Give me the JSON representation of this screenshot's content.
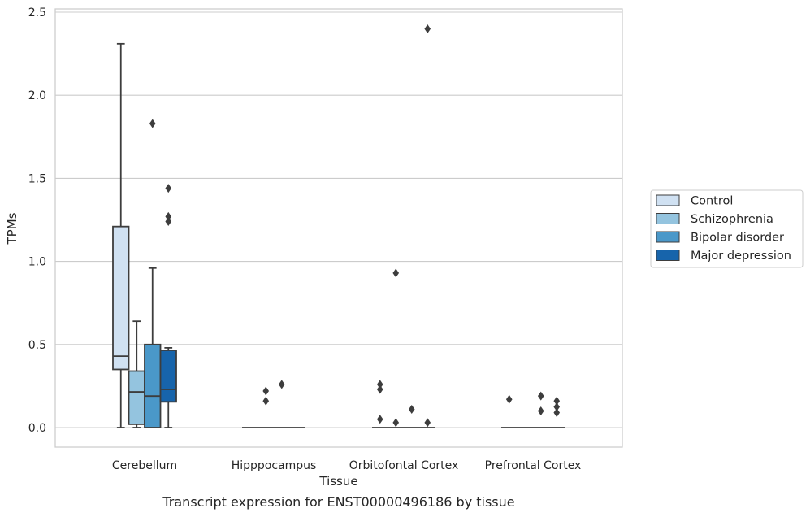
{
  "chart_data": {
    "type": "box",
    "title": "Transcript expression for ENST00000496186 by tissue",
    "xlabel": "Tissue",
    "ylabel": "TPMs",
    "ylim": [
      -0.115,
      2.535
    ],
    "yticks": [
      "0.0",
      "0.5",
      "1.0",
      "1.5",
      "2.0",
      "2.5"
    ],
    "ytick_values": [
      0,
      0.5,
      1.0,
      1.5,
      2.0,
      2.5
    ],
    "grid": "horizontal",
    "legend_position": "right",
    "categories": [
      "Cerebellum",
      "Hipppocampus",
      "Orbitofontal Cortex",
      "Prefrontal Cortex"
    ],
    "series": [
      {
        "name": "Control",
        "color": "#d0e1f2",
        "boxes": [
          {
            "q1": 0.35,
            "median": 0.43,
            "q3": 1.21,
            "whisker_low": 0.0,
            "whisker_high": 2.31,
            "outliers": []
          },
          {
            "q1": 0.0,
            "median": 0.0,
            "q3": 0.0,
            "whisker_low": 0.0,
            "whisker_high": 0.0,
            "outliers": []
          },
          {
            "q1": 0.0,
            "median": 0.0,
            "q3": 0.0,
            "whisker_low": 0.0,
            "whisker_high": 0.0,
            "outliers": [
              0.05,
              0.23,
              0.26
            ]
          },
          {
            "q1": 0.0,
            "median": 0.0,
            "q3": 0.0,
            "whisker_low": 0.0,
            "whisker_high": 0.0,
            "outliers": [
              0.17
            ]
          }
        ]
      },
      {
        "name": "Schizophrenia",
        "color": "#94c4df",
        "boxes": [
          {
            "q1": 0.02,
            "median": 0.215,
            "q3": 0.34,
            "whisker_low": 0.0,
            "whisker_high": 0.64,
            "outliers": []
          },
          {
            "q1": 0.0,
            "median": 0.0,
            "q3": 0.0,
            "whisker_low": 0.0,
            "whisker_high": 0.0,
            "outliers": [
              0.16,
              0.22
            ]
          },
          {
            "q1": 0.0,
            "median": 0.0,
            "q3": 0.0,
            "whisker_low": 0.0,
            "whisker_high": 0.0,
            "outliers": [
              0.03,
              0.93
            ]
          },
          {
            "q1": 0.0,
            "median": 0.0,
            "q3": 0.0,
            "whisker_low": 0.0,
            "whisker_high": 0.0,
            "outliers": []
          }
        ]
      },
      {
        "name": "Bipolar disorder",
        "color": "#4a98c9",
        "boxes": [
          {
            "q1": 0.0,
            "median": 0.19,
            "q3": 0.5,
            "whisker_low": 0.0,
            "whisker_high": 0.96,
            "outliers": [
              1.83
            ]
          },
          {
            "q1": 0.0,
            "median": 0.0,
            "q3": 0.0,
            "whisker_low": 0.0,
            "whisker_high": 0.0,
            "outliers": [
              0.26
            ]
          },
          {
            "q1": 0.0,
            "median": 0.0,
            "q3": 0.0,
            "whisker_low": 0.0,
            "whisker_high": 0.0,
            "outliers": [
              0.11
            ]
          },
          {
            "q1": 0.0,
            "median": 0.0,
            "q3": 0.0,
            "whisker_low": 0.0,
            "whisker_high": 0.0,
            "outliers": [
              0.1,
              0.19
            ]
          }
        ]
      },
      {
        "name": "Major depression",
        "color": "#1764ab",
        "boxes": [
          {
            "q1": 0.155,
            "median": 0.23,
            "q3": 0.465,
            "whisker_low": 0.0,
            "whisker_high": 0.48,
            "outliers": [
              1.24,
              1.27,
              1.44
            ]
          },
          {
            "q1": 0.0,
            "median": 0.0,
            "q3": 0.0,
            "whisker_low": 0.0,
            "whisker_high": 0.0,
            "outliers": []
          },
          {
            "q1": 0.0,
            "median": 0.0,
            "q3": 0.0,
            "whisker_low": 0.0,
            "whisker_high": 0.0,
            "outliers": [
              0.03,
              2.4
            ]
          },
          {
            "q1": 0.0,
            "median": 0.0,
            "q3": 0.0,
            "whisker_low": 0.0,
            "whisker_high": 0.0,
            "outliers": [
              0.09,
              0.125,
              0.16
            ]
          }
        ]
      }
    ]
  }
}
